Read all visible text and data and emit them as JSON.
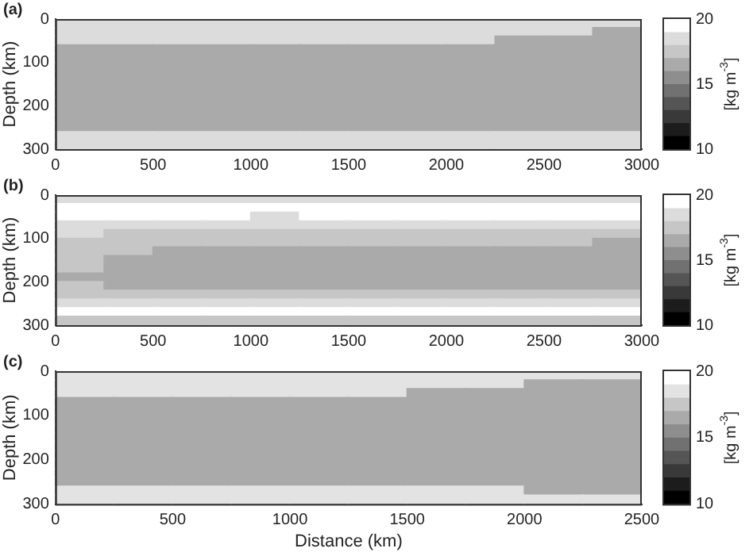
{
  "chart_data": [
    {
      "type": "heatmap",
      "title": "(a)",
      "ylabel": "Depth (km)",
      "clabel": "[kg m$^{-3}$]",
      "xlim": [
        0,
        3000
      ],
      "xticks": [
        0,
        500,
        1000,
        1500,
        2000,
        2500,
        3000
      ],
      "ylim": [
        300,
        0
      ],
      "yticks": [
        0,
        100,
        200,
        300
      ],
      "clim": [
        10,
        20
      ],
      "cticks": [
        10,
        15,
        20
      ],
      "colors": [
        "#000000",
        "#1c1c1c",
        "#393939",
        "#555555",
        "#717171",
        "#8e8e8e",
        "#aaaaaa",
        "#c6c6c6",
        "#dcdcdc",
        "#ffffff"
      ],
      "x": [
        125,
        375,
        625,
        875,
        1125,
        1375,
        1625,
        1875,
        2125,
        2375,
        2625,
        2875
      ],
      "y": [
        10,
        30,
        50,
        70,
        90,
        110,
        130,
        150,
        170,
        190,
        210,
        230,
        250,
        270,
        290
      ],
      "cells": [
        [
          18.5,
          18.5,
          18.5,
          18.5,
          18.5,
          18.5,
          18.5,
          18.5,
          18.5,
          18.5,
          18.5,
          18.5
        ],
        [
          18.5,
          18.5,
          18.5,
          18.5,
          18.5,
          18.5,
          18.5,
          18.5,
          18.5,
          18.5,
          18.5,
          16.5
        ],
        [
          18.5,
          18.5,
          18.5,
          18.5,
          18.5,
          18.5,
          18.5,
          18.5,
          18.5,
          16.5,
          16.5,
          16.5
        ],
        [
          16.5,
          16.5,
          16.5,
          16.5,
          16.5,
          16.5,
          16.5,
          16.5,
          16.5,
          16.5,
          16.5,
          16.5
        ],
        [
          16.5,
          16.5,
          16.5,
          16.5,
          16.5,
          16.5,
          16.5,
          16.5,
          16.5,
          16.5,
          16.5,
          16.5
        ],
        [
          16.5,
          16.5,
          16.5,
          16.5,
          16.5,
          16.5,
          16.5,
          16.5,
          16.5,
          16.5,
          16.5,
          16.5
        ],
        [
          16.5,
          16.5,
          16.5,
          16.5,
          16.5,
          16.5,
          16.5,
          16.5,
          16.5,
          16.5,
          16.5,
          16.5
        ],
        [
          16.5,
          16.5,
          16.5,
          16.5,
          16.5,
          16.5,
          16.5,
          16.5,
          16.5,
          16.5,
          16.5,
          16.5
        ],
        [
          16.5,
          16.5,
          16.5,
          16.5,
          16.5,
          16.5,
          16.5,
          16.5,
          16.5,
          16.5,
          16.5,
          16.5
        ],
        [
          16.5,
          16.5,
          16.5,
          16.5,
          16.5,
          16.5,
          16.5,
          16.5,
          16.5,
          16.5,
          16.5,
          16.5
        ],
        [
          16.5,
          16.5,
          16.5,
          16.5,
          16.5,
          16.5,
          16.5,
          16.5,
          16.5,
          16.5,
          16.5,
          16.5
        ],
        [
          16.5,
          16.5,
          16.5,
          16.5,
          16.5,
          16.5,
          16.5,
          16.5,
          16.5,
          16.5,
          16.5,
          16.5
        ],
        [
          16.5,
          16.5,
          16.5,
          16.5,
          16.5,
          16.5,
          16.5,
          16.5,
          16.5,
          16.5,
          16.5,
          16.5
        ],
        [
          18.5,
          18.5,
          18.5,
          18.5,
          18.5,
          18.5,
          18.5,
          18.5,
          18.5,
          18.5,
          18.5,
          18.5
        ],
        [
          18.5,
          18.5,
          18.5,
          18.5,
          18.5,
          18.5,
          18.5,
          18.5,
          18.5,
          18.5,
          18.5,
          18.5
        ]
      ]
    },
    {
      "type": "heatmap",
      "title": "(b)",
      "ylabel": "Depth (km)",
      "clabel": "[kg m$^{-3}$]",
      "xlim": [
        0,
        3000
      ],
      "xticks": [
        0,
        500,
        1000,
        1500,
        2000,
        2500,
        3000
      ],
      "ylim": [
        300,
        0
      ],
      "yticks": [
        0,
        100,
        200,
        300
      ],
      "clim": [
        10,
        20
      ],
      "cticks": [
        10,
        15,
        20
      ],
      "colors": [
        "#000000",
        "#1c1c1c",
        "#393939",
        "#555555",
        "#717171",
        "#8e8e8e",
        "#aaaaaa",
        "#c6c6c6",
        "#dcdcdc",
        "#ffffff"
      ],
      "x": [
        125,
        375,
        625,
        875,
        1125,
        1375,
        1625,
        1875,
        2125,
        2375,
        2625,
        2875
      ],
      "y": [
        10,
        30,
        50,
        70,
        90,
        110,
        130,
        150,
        170,
        190,
        210,
        230,
        250,
        270,
        290
      ],
      "cells": [
        [
          18.5,
          18.5,
          18.5,
          18.5,
          18.5,
          18.5,
          18.5,
          18.5,
          18.5,
          18.5,
          18.5,
          18.5
        ],
        [
          19.5,
          19.5,
          19.5,
          19.5,
          19.5,
          19.5,
          19.5,
          19.5,
          19.5,
          19.5,
          19.5,
          19.5
        ],
        [
          19.5,
          19.5,
          19.5,
          19.5,
          18.5,
          19.5,
          19.5,
          19.5,
          19.5,
          19.5,
          19.5,
          19.5
        ],
        [
          18.5,
          18.5,
          18.5,
          18.5,
          18.5,
          18.5,
          18.5,
          18.5,
          18.5,
          18.5,
          18.5,
          18.5
        ],
        [
          18.5,
          17.5,
          17.5,
          17.5,
          17.5,
          17.5,
          17.5,
          17.5,
          17.5,
          17.5,
          17.5,
          17.5
        ],
        [
          17.5,
          17.5,
          17.5,
          17.5,
          17.5,
          17.5,
          17.5,
          17.5,
          17.5,
          17.5,
          17.5,
          16.5
        ],
        [
          17.5,
          17.5,
          16.5,
          16.5,
          16.5,
          16.5,
          16.5,
          16.5,
          16.5,
          16.5,
          16.5,
          16.5
        ],
        [
          17.5,
          16.5,
          16.5,
          16.5,
          16.5,
          16.5,
          16.5,
          16.5,
          16.5,
          16.5,
          16.5,
          16.5
        ],
        [
          17.5,
          16.5,
          16.5,
          16.5,
          16.5,
          16.5,
          16.5,
          16.5,
          16.5,
          16.5,
          16.5,
          16.5
        ],
        [
          16.5,
          16.5,
          16.5,
          16.5,
          16.5,
          16.5,
          16.5,
          16.5,
          16.5,
          16.5,
          16.5,
          16.5
        ],
        [
          17.5,
          16.5,
          16.5,
          16.5,
          16.5,
          16.5,
          16.5,
          16.5,
          16.5,
          16.5,
          16.5,
          16.5
        ],
        [
          17.5,
          17.5,
          17.5,
          17.5,
          17.5,
          17.5,
          17.5,
          17.5,
          17.5,
          17.5,
          17.5,
          17.5
        ],
        [
          18.5,
          18.5,
          18.5,
          18.5,
          18.5,
          18.5,
          18.5,
          18.5,
          18.5,
          18.5,
          18.5,
          18.5
        ],
        [
          19.5,
          19.5,
          19.5,
          19.5,
          19.5,
          19.5,
          19.5,
          19.5,
          19.5,
          19.5,
          19.5,
          19.5
        ],
        [
          17.5,
          17.5,
          17.5,
          17.5,
          17.5,
          17.5,
          17.5,
          17.5,
          17.5,
          17.5,
          17.5,
          17.5
        ]
      ]
    },
    {
      "type": "heatmap",
      "title": "(c)",
      "xlabel": "Distance (km)",
      "ylabel": "Depth (km)",
      "clabel": "[kg m$^{-3}$]",
      "xlim": [
        0,
        2500
      ],
      "xticks": [
        0,
        500,
        1000,
        1500,
        2000,
        2500
      ],
      "ylim": [
        300,
        0
      ],
      "yticks": [
        0,
        100,
        200,
        300
      ],
      "clim": [
        10,
        20
      ],
      "cticks": [
        10,
        15,
        20
      ],
      "colors": [
        "#000000",
        "#1c1c1c",
        "#393939",
        "#555555",
        "#717171",
        "#8e8e8e",
        "#aaaaaa",
        "#c6c6c6",
        "#e3e3e3",
        "#ffffff"
      ],
      "x": [
        125,
        375,
        625,
        875,
        1125,
        1375,
        1625,
        1875,
        2125,
        2375
      ],
      "y": [
        10,
        30,
        50,
        70,
        90,
        110,
        130,
        150,
        170,
        190,
        210,
        230,
        250,
        270,
        290
      ],
      "cells": [
        [
          18.5,
          18.5,
          18.5,
          18.5,
          18.5,
          18.5,
          18.5,
          18.5,
          18.5,
          18.5
        ],
        [
          18.5,
          18.5,
          18.5,
          18.5,
          18.5,
          18.5,
          18.5,
          18.5,
          16.5,
          16.5
        ],
        [
          18.5,
          18.5,
          18.5,
          18.5,
          18.5,
          18.5,
          16.5,
          16.5,
          16.5,
          16.5
        ],
        [
          16.5,
          16.5,
          16.5,
          16.5,
          16.5,
          16.5,
          16.5,
          16.5,
          16.5,
          16.5
        ],
        [
          16.5,
          16.5,
          16.5,
          16.5,
          16.5,
          16.5,
          16.5,
          16.5,
          16.5,
          16.5
        ],
        [
          16.5,
          16.5,
          16.5,
          16.5,
          16.5,
          16.5,
          16.5,
          16.5,
          16.5,
          16.5
        ],
        [
          16.5,
          16.5,
          16.5,
          16.5,
          16.5,
          16.5,
          16.5,
          16.5,
          16.5,
          16.5
        ],
        [
          16.5,
          16.5,
          16.5,
          16.5,
          16.5,
          16.5,
          16.5,
          16.5,
          16.5,
          16.5
        ],
        [
          16.5,
          16.5,
          16.5,
          16.5,
          16.5,
          16.5,
          16.5,
          16.5,
          16.5,
          16.5
        ],
        [
          16.5,
          16.5,
          16.5,
          16.5,
          16.5,
          16.5,
          16.5,
          16.5,
          16.5,
          16.5
        ],
        [
          16.5,
          16.5,
          16.5,
          16.5,
          16.5,
          16.5,
          16.5,
          16.5,
          16.5,
          16.5
        ],
        [
          16.5,
          16.5,
          16.5,
          16.5,
          16.5,
          16.5,
          16.5,
          16.5,
          16.5,
          16.5
        ],
        [
          16.5,
          16.5,
          16.5,
          16.5,
          16.5,
          16.5,
          16.5,
          16.5,
          16.5,
          16.5
        ],
        [
          18.5,
          18.5,
          18.5,
          18.5,
          18.5,
          18.5,
          18.5,
          18.5,
          16.5,
          16.5
        ],
        [
          18.5,
          18.5,
          18.5,
          18.5,
          18.5,
          18.5,
          18.5,
          18.5,
          18.5,
          18.5
        ]
      ]
    }
  ]
}
